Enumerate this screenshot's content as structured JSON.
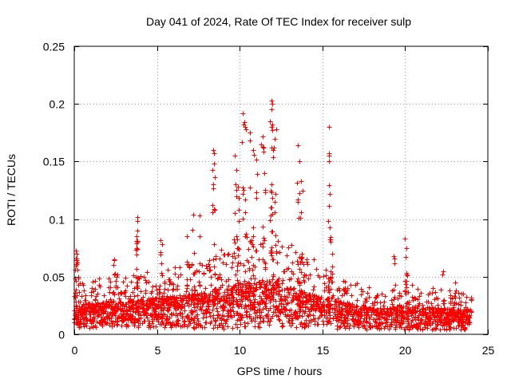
{
  "chart_data": {
    "type": "scatter",
    "title": "Day 041 of 2024, Rate Of TEC Index for receiver sulp",
    "xlabel": "GPS time / hours",
    "ylabel": "ROTI / TECUs",
    "xlim": [
      0,
      25
    ],
    "ylim": [
      0,
      0.25
    ],
    "xticks": [
      0,
      5,
      10,
      15,
      20,
      25
    ],
    "yticks": [
      0,
      0.05,
      0.1,
      0.15,
      0.2,
      0.25
    ],
    "xtick_labels": [
      "0",
      "5",
      "10",
      "15",
      "20",
      "25"
    ],
    "ytick_labels": [
      "0",
      "0.05",
      "0.1",
      "0.15",
      "0.2",
      "0.25"
    ],
    "grid": true,
    "marker": "+",
    "color": "#ff0000",
    "series": [
      {
        "name": "ROTI",
        "x_range": [
          0,
          24
        ],
        "baseline_profile": [
          {
            "x": 0,
            "low": 0.005,
            "typical": 0.018,
            "high": 0.045
          },
          {
            "x": 2,
            "low": 0.006,
            "typical": 0.02,
            "high": 0.05
          },
          {
            "x": 5,
            "low": 0.006,
            "typical": 0.022,
            "high": 0.055
          },
          {
            "x": 8,
            "low": 0.005,
            "typical": 0.025,
            "high": 0.065
          },
          {
            "x": 10,
            "low": 0.005,
            "typical": 0.03,
            "high": 0.09
          },
          {
            "x": 12,
            "low": 0.006,
            "typical": 0.032,
            "high": 0.09
          },
          {
            "x": 14,
            "low": 0.006,
            "typical": 0.025,
            "high": 0.07
          },
          {
            "x": 16,
            "low": 0.005,
            "typical": 0.02,
            "high": 0.05
          },
          {
            "x": 18,
            "low": 0.004,
            "typical": 0.016,
            "high": 0.04
          },
          {
            "x": 20,
            "low": 0.004,
            "typical": 0.017,
            "high": 0.045
          },
          {
            "x": 22,
            "low": 0.004,
            "typical": 0.016,
            "high": 0.04
          },
          {
            "x": 24,
            "low": 0.004,
            "typical": 0.015,
            "high": 0.035
          }
        ],
        "peaks": [
          {
            "x": 0.1,
            "y": 0.073
          },
          {
            "x": 0.15,
            "y": 0.07
          },
          {
            "x": 0.2,
            "y": 0.062
          },
          {
            "x": 2.4,
            "y": 0.065
          },
          {
            "x": 2.6,
            "y": 0.052
          },
          {
            "x": 3.8,
            "y": 0.102
          },
          {
            "x": 3.8,
            "y": 0.098
          },
          {
            "x": 3.75,
            "y": 0.085
          },
          {
            "x": 3.8,
            "y": 0.08
          },
          {
            "x": 5.2,
            "y": 0.082
          },
          {
            "x": 5.3,
            "y": 0.078
          },
          {
            "x": 6.8,
            "y": 0.085
          },
          {
            "x": 7.2,
            "y": 0.104
          },
          {
            "x": 7.6,
            "y": 0.103
          },
          {
            "x": 8.4,
            "y": 0.16
          },
          {
            "x": 8.45,
            "y": 0.157
          },
          {
            "x": 8.4,
            "y": 0.13
          },
          {
            "x": 8.5,
            "y": 0.108
          },
          {
            "x": 9.7,
            "y": 0.155
          },
          {
            "x": 9.8,
            "y": 0.143
          },
          {
            "x": 9.9,
            "y": 0.128
          },
          {
            "x": 10.2,
            "y": 0.192
          },
          {
            "x": 10.3,
            "y": 0.184
          },
          {
            "x": 10.25,
            "y": 0.182
          },
          {
            "x": 10.6,
            "y": 0.175
          },
          {
            "x": 10.8,
            "y": 0.16
          },
          {
            "x": 11.0,
            "y": 0.152
          },
          {
            "x": 11.4,
            "y": 0.172
          },
          {
            "x": 11.3,
            "y": 0.165
          },
          {
            "x": 11.5,
            "y": 0.14
          },
          {
            "x": 11.9,
            "y": 0.203
          },
          {
            "x": 11.95,
            "y": 0.2
          },
          {
            "x": 11.9,
            "y": 0.195
          },
          {
            "x": 11.95,
            "y": 0.182
          },
          {
            "x": 12.2,
            "y": 0.178
          },
          {
            "x": 12.1,
            "y": 0.17
          },
          {
            "x": 12.0,
            "y": 0.16
          },
          {
            "x": 13.5,
            "y": 0.164
          },
          {
            "x": 13.6,
            "y": 0.15
          },
          {
            "x": 13.7,
            "y": 0.133
          },
          {
            "x": 13.8,
            "y": 0.125
          },
          {
            "x": 15.4,
            "y": 0.18
          },
          {
            "x": 15.4,
            "y": 0.155
          },
          {
            "x": 15.45,
            "y": 0.122
          },
          {
            "x": 15.5,
            "y": 0.08
          },
          {
            "x": 15.6,
            "y": 0.07
          },
          {
            "x": 19.3,
            "y": 0.068
          },
          {
            "x": 20.0,
            "y": 0.083
          },
          {
            "x": 20.1,
            "y": 0.075
          },
          {
            "x": 22.3,
            "y": 0.055
          },
          {
            "x": 23.0,
            "y": 0.045
          }
        ]
      }
    ]
  }
}
